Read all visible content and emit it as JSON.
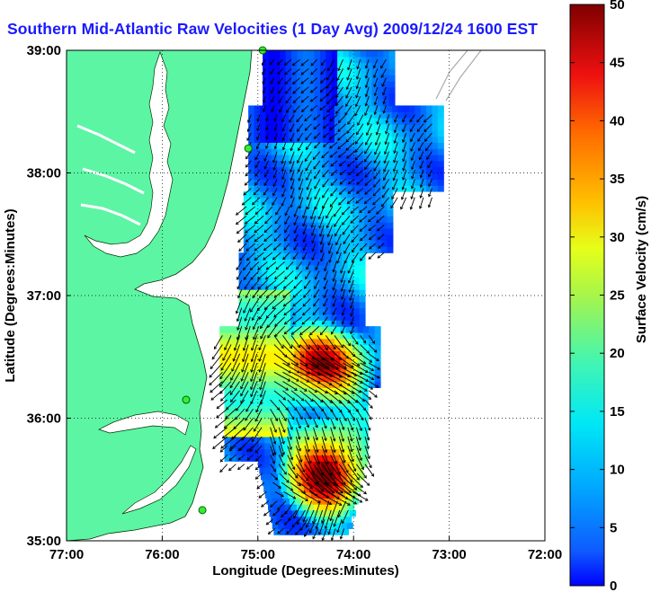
{
  "title": "Southern Mid-Atlantic Raw Velocities (1 Day Avg) 2009/12/24 1600 EST",
  "x_axis": {
    "label": "Longitude (Degrees:Minutes)",
    "ticks": [
      "77:00",
      "76:00",
      "75:00",
      "74:00",
      "73:00",
      "72:00"
    ],
    "range": [
      -77,
      -72
    ]
  },
  "y_axis": {
    "label": "Latitude (Degrees:Minutes)",
    "ticks": [
      "35:00",
      "36:00",
      "37:00",
      "38:00",
      "39:00"
    ],
    "range": [
      35,
      39
    ]
  },
  "colorbar": {
    "label": "Surface Velocity (cm/s)",
    "ticks": [
      "0",
      "5",
      "10",
      "15",
      "20",
      "25",
      "30",
      "35",
      "40",
      "45",
      "50"
    ],
    "range": [
      0,
      50
    ],
    "colormap": "jet"
  },
  "colors": {
    "land": "#5cf5a4",
    "title": "#1a1aff",
    "station": "#33ee33",
    "bathymetry": "#aaaaaa"
  },
  "grid": "dotted",
  "stations": [
    {
      "lon": -74.95,
      "lat": 39.0
    },
    {
      "lon": -75.1,
      "lat": 38.2
    },
    {
      "lon": -75.75,
      "lat": 36.15
    },
    {
      "lon": -75.58,
      "lat": 35.25
    }
  ]
}
